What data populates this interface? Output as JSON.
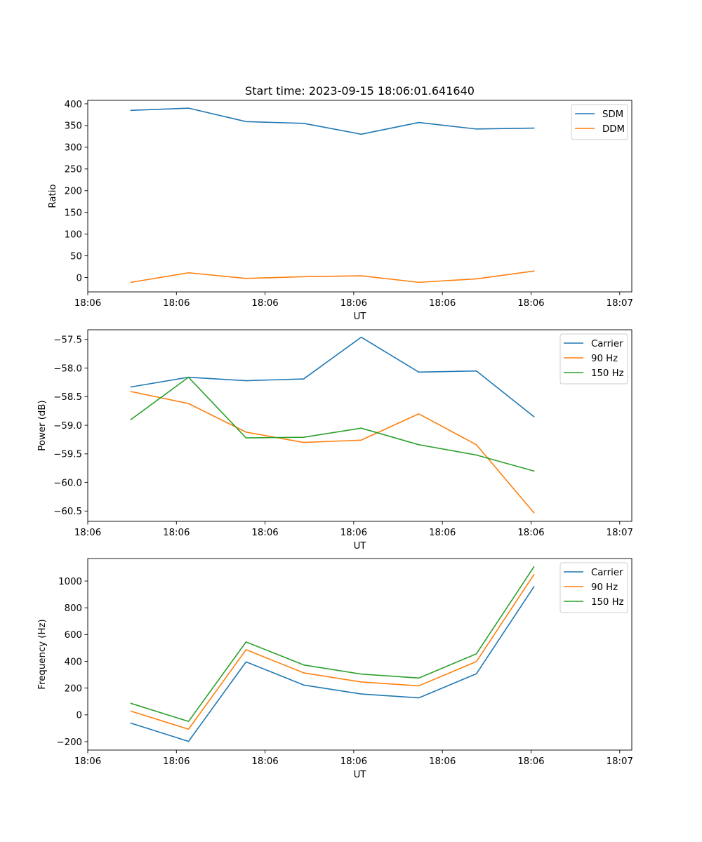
{
  "colors": {
    "c0": "#1f77b4",
    "c1": "#ff7f0e",
    "c2": "#2ca02c"
  },
  "chart_data": [
    {
      "type": "line",
      "title": "Start time: 2023-09-15 18:06:01.641640",
      "xlabel": "UT",
      "ylabel": "Ratio",
      "x": [
        0,
        1,
        2,
        3,
        4,
        5,
        6,
        7
      ],
      "xlim": [
        -0.75,
        8.7
      ],
      "xticks": [
        -0.75,
        0.79,
        2.33,
        3.87,
        5.41,
        6.95,
        8.49
      ],
      "xticklabels": [
        "18:06",
        "18:06",
        "18:06",
        "18:06",
        "18:06",
        "18:06",
        "18:07"
      ],
      "ylim": [
        -33,
        408
      ],
      "yticks": [
        0,
        50,
        100,
        150,
        200,
        250,
        300,
        350,
        400
      ],
      "yticklabels": [
        "0",
        "50",
        "100",
        "150",
        "200",
        "250",
        "300",
        "350",
        "400"
      ],
      "legend": "top-right",
      "series": [
        {
          "name": "SDM",
          "color": "#1f77b4",
          "values": [
            385,
            390,
            359,
            355,
            330,
            357,
            342,
            344
          ]
        },
        {
          "name": "DDM",
          "color": "#ff7f0e",
          "values": [
            -11,
            11,
            -2,
            2,
            4,
            -11,
            -3,
            15
          ]
        }
      ]
    },
    {
      "type": "line",
      "title": "",
      "xlabel": "UT",
      "ylabel": "Power (dB)",
      "x": [
        0,
        1,
        2,
        3,
        4,
        5,
        6,
        7
      ],
      "xlim": [
        -0.75,
        8.7
      ],
      "xticks": [
        -0.75,
        0.79,
        2.33,
        3.87,
        5.41,
        6.95,
        8.49
      ],
      "xticklabels": [
        "18:06",
        "18:06",
        "18:06",
        "18:06",
        "18:06",
        "18:06",
        "18:07"
      ],
      "ylim": [
        -60.68,
        -57.33
      ],
      "yticks": [
        -60.5,
        -60.0,
        -59.5,
        -59.0,
        -58.5,
        -58.0,
        -57.5
      ],
      "yticklabels": [
        "−60.5",
        "−60.0",
        "−59.5",
        "−59.0",
        "−58.5",
        "−58.0",
        "−57.5"
      ],
      "legend": "top-right",
      "series": [
        {
          "name": "Carrier",
          "color": "#1f77b4",
          "values": [
            -58.33,
            -58.16,
            -58.22,
            -58.19,
            -57.46,
            -58.07,
            -58.05,
            -58.85
          ]
        },
        {
          "name": "90 Hz",
          "color": "#ff7f0e",
          "values": [
            -58.41,
            -58.62,
            -59.12,
            -59.3,
            -59.26,
            -58.8,
            -59.34,
            -60.53
          ]
        },
        {
          "name": "150 Hz",
          "color": "#2ca02c",
          "values": [
            -58.9,
            -58.16,
            -59.22,
            -59.21,
            -59.05,
            -59.34,
            -59.52,
            -59.8
          ]
        }
      ]
    },
    {
      "type": "line",
      "title": "",
      "xlabel": "UT",
      "ylabel": "Frequency (Hz)",
      "x": [
        0,
        1,
        2,
        3,
        4,
        5,
        6,
        7
      ],
      "xlim": [
        -0.75,
        8.7
      ],
      "xticks": [
        -0.75,
        0.79,
        2.33,
        3.87,
        5.41,
        6.95,
        8.49
      ],
      "xticklabels": [
        "18:06",
        "18:06",
        "18:06",
        "18:06",
        "18:06",
        "18:06",
        "18:07"
      ],
      "ylim": [
        -263,
        1168
      ],
      "yticks": [
        -200,
        0,
        200,
        400,
        600,
        800,
        1000
      ],
      "yticklabels": [
        "−200",
        "0",
        "200",
        "400",
        "600",
        "800",
        "1000"
      ],
      "legend": "top-right",
      "series": [
        {
          "name": "Carrier",
          "color": "#1f77b4",
          "values": [
            -62,
            -198,
            396,
            223,
            156,
            127,
            307,
            957
          ]
        },
        {
          "name": "90 Hz",
          "color": "#ff7f0e",
          "values": [
            28,
            -107,
            487,
            314,
            246,
            217,
            398,
            1048
          ]
        },
        {
          "name": "150 Hz",
          "color": "#2ca02c",
          "values": [
            86,
            -49,
            545,
            373,
            305,
            275,
            456,
            1106
          ]
        }
      ]
    }
  ]
}
